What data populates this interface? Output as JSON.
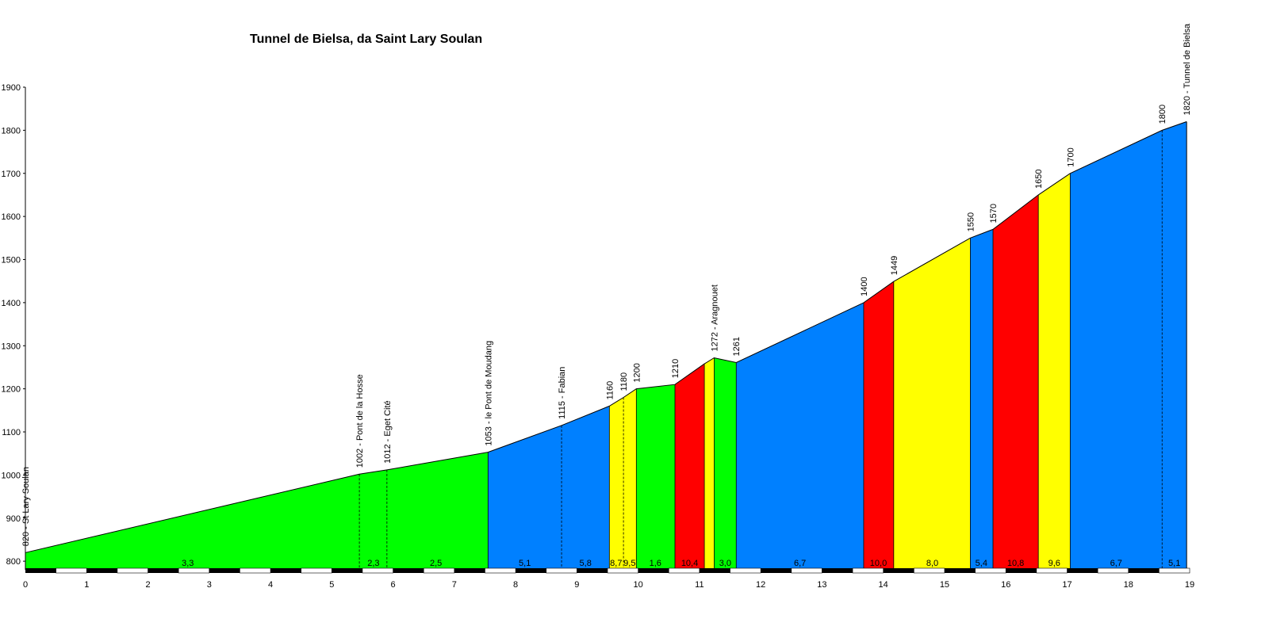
{
  "chart_data": {
    "type": "area",
    "title": "Tunnel de Bielsa, da Saint Lary Soulan",
    "xlabel": "",
    "ylabel": "",
    "xlim": [
      0,
      19
    ],
    "ylim": [
      780,
      1900
    ],
    "x_ticks": [
      0,
      1,
      2,
      3,
      4,
      5,
      6,
      7,
      8,
      9,
      10,
      11,
      12,
      13,
      14,
      15,
      16,
      17,
      18,
      19
    ],
    "y_ticks": [
      800,
      900,
      1000,
      1100,
      1200,
      1300,
      1400,
      1500,
      1600,
      1700,
      1800,
      1900
    ],
    "profile": [
      {
        "km": 0,
        "alt": 820,
        "label": "820 - St Lary Soulan"
      },
      {
        "km": 5.45,
        "alt": 1002,
        "label": "1002 - Pont de la Hosse"
      },
      {
        "km": 5.9,
        "alt": 1012,
        "label": "1012 - Eget Cité"
      },
      {
        "km": 7.55,
        "alt": 1053,
        "label": "1053 - le Pont de Moudang"
      },
      {
        "km": 8.75,
        "alt": 1115,
        "label": "1115 - Fabian"
      },
      {
        "km": 9.53,
        "alt": 1160,
        "label": "1160"
      },
      {
        "km": 9.76,
        "alt": 1180,
        "label": "1180"
      },
      {
        "km": 9.97,
        "alt": 1200,
        "label": "1200"
      },
      {
        "km": 10.6,
        "alt": 1210,
        "label": "1210"
      },
      {
        "km": 11.08,
        "alt": 1258,
        "label": ""
      },
      {
        "km": 11.24,
        "alt": 1272,
        "label": "1272 - Aragnouet"
      },
      {
        "km": 11.6,
        "alt": 1261,
        "label": "1261"
      },
      {
        "km": 13.68,
        "alt": 1400,
        "label": "1400"
      },
      {
        "km": 14.17,
        "alt": 1449,
        "label": "1449"
      },
      {
        "km": 15.42,
        "alt": 1550,
        "label": "1550"
      },
      {
        "km": 15.79,
        "alt": 1570,
        "label": "1570"
      },
      {
        "km": 16.53,
        "alt": 1650,
        "label": "1650"
      },
      {
        "km": 17.05,
        "alt": 1700,
        "label": "1700"
      },
      {
        "km": 18.55,
        "alt": 1800,
        "label": "1800"
      },
      {
        "km": 18.95,
        "alt": 1820,
        "label": "1820 - Tunnel de Bielsa"
      }
    ],
    "segments": [
      {
        "from": 0,
        "to": 7.55,
        "grade": "3,3",
        "color": "#00ff00"
      },
      {
        "from": 7.55,
        "to": 9.53,
        "grade": "5,1",
        "color": "#0080ff"
      },
      {
        "from": 9.53,
        "to": 9.97,
        "grade": "8,7",
        "color": "#ffff00"
      },
      {
        "from": 9.97,
        "to": 10.6,
        "grade": "1,6",
        "color": "#00ff00"
      },
      {
        "from": 10.6,
        "to": 11.08,
        "grade": "10,4",
        "color": "#ff0000"
      },
      {
        "from": 11.08,
        "to": 11.24,
        "grade": "",
        "color": "#ffff00"
      },
      {
        "from": 11.24,
        "to": 11.6,
        "grade": "3,0",
        "color": "#00ff00"
      },
      {
        "from": 11.6,
        "to": 13.68,
        "grade": "6,7",
        "color": "#0080ff"
      },
      {
        "from": 13.68,
        "to": 14.17,
        "grade": "10,0",
        "color": "#ff0000"
      },
      {
        "from": 14.17,
        "to": 15.42,
        "grade": "8,0",
        "color": "#ffff00"
      },
      {
        "from": 15.42,
        "to": 15.79,
        "grade": "5,4",
        "color": "#0080ff"
      },
      {
        "from": 15.79,
        "to": 16.53,
        "grade": "10,8",
        "color": "#ff0000"
      },
      {
        "from": 16.53,
        "to": 17.05,
        "grade": "9,6",
        "color": "#ffff00"
      },
      {
        "from": 17.05,
        "to": 18.95,
        "grade": "6,7",
        "color": "#0080ff"
      }
    ],
    "grade_labels": [
      {
        "km": 2.65,
        "text": "3,3"
      },
      {
        "km": 5.68,
        "text": "2,3"
      },
      {
        "km": 6.7,
        "text": "2,5"
      },
      {
        "km": 8.15,
        "text": "5,1"
      },
      {
        "km": 9.14,
        "text": "5,8"
      },
      {
        "km": 9.64,
        "text": "8,7"
      },
      {
        "km": 9.86,
        "text": "9,5"
      },
      {
        "km": 10.28,
        "text": "1,6"
      },
      {
        "km": 10.84,
        "text": "10,4"
      },
      {
        "km": 11.42,
        "text": "3,0"
      },
      {
        "km": 12.64,
        "text": "6,7"
      },
      {
        "km": 13.92,
        "text": "10,0"
      },
      {
        "km": 14.8,
        "text": "8,0"
      },
      {
        "km": 15.6,
        "text": "5,4"
      },
      {
        "km": 16.16,
        "text": "10,8"
      },
      {
        "km": 16.79,
        "text": "9,6"
      },
      {
        "km": 17.8,
        "text": "6,7"
      },
      {
        "km": 18.75,
        "text": "5,1"
      }
    ],
    "dashed_markers": [
      5.45,
      5.9,
      8.75,
      9.76,
      18.55
    ],
    "grid": false,
    "legend": "none"
  }
}
